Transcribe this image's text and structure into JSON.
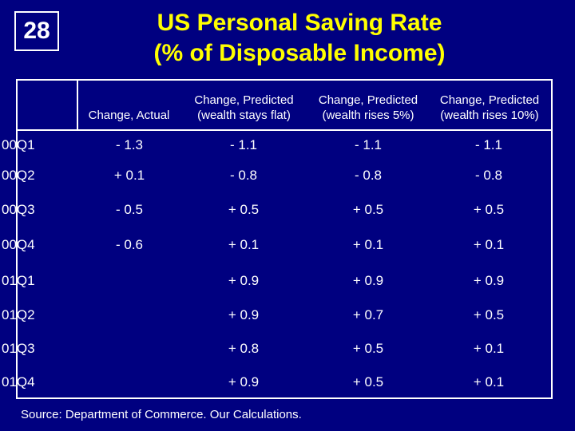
{
  "slide": {
    "number": "28",
    "title_line1": "US Personal Saving Rate",
    "title_line2": "(% of Disposable Income)"
  },
  "table": {
    "headers": [
      {
        "line1": "",
        "line2": "Change, Actual"
      },
      {
        "line1": "Change, Predicted",
        "line2": "(wealth stays flat)"
      },
      {
        "line1": "Change, Predicted",
        "line2": "(wealth rises 5%)"
      },
      {
        "line1": "Change, Predicted",
        "line2": "(wealth rises 10%)"
      }
    ],
    "rows": [
      {
        "label": "00Q1",
        "values": [
          "- 1.3",
          "- 1.1",
          "- 1.1",
          "- 1.1"
        ]
      },
      {
        "label": "00Q2",
        "values": [
          "+ 0.1",
          "- 0.8",
          "- 0.8",
          "- 0.8"
        ]
      },
      {
        "label": "00Q3",
        "values": [
          "- 0.5",
          "+ 0.5",
          "+ 0.5",
          "+ 0.5"
        ]
      },
      {
        "label": "00Q4",
        "values": [
          "- 0.6",
          "+ 0.1",
          "+ 0.1",
          "+ 0.1"
        ]
      },
      {
        "label": "01Q1",
        "values": [
          "",
          "+ 0.9",
          "+ 0.9",
          "+ 0.9"
        ]
      },
      {
        "label": "01Q2",
        "values": [
          "",
          "+ 0.9",
          "+ 0.7",
          "+ 0.5"
        ]
      },
      {
        "label": "01Q3",
        "values": [
          "",
          "+ 0.8",
          "+ 0.5",
          "+ 0.1"
        ]
      },
      {
        "label": "01Q4",
        "values": [
          "",
          "+ 0.9",
          "+ 0.5",
          "+ 0.1"
        ]
      }
    ]
  },
  "footer": {
    "source": "Source: Department of Commerce. Our Calculations."
  },
  "colors": {
    "background": "#000080",
    "title": "#ffff00",
    "text": "#ffffff"
  }
}
